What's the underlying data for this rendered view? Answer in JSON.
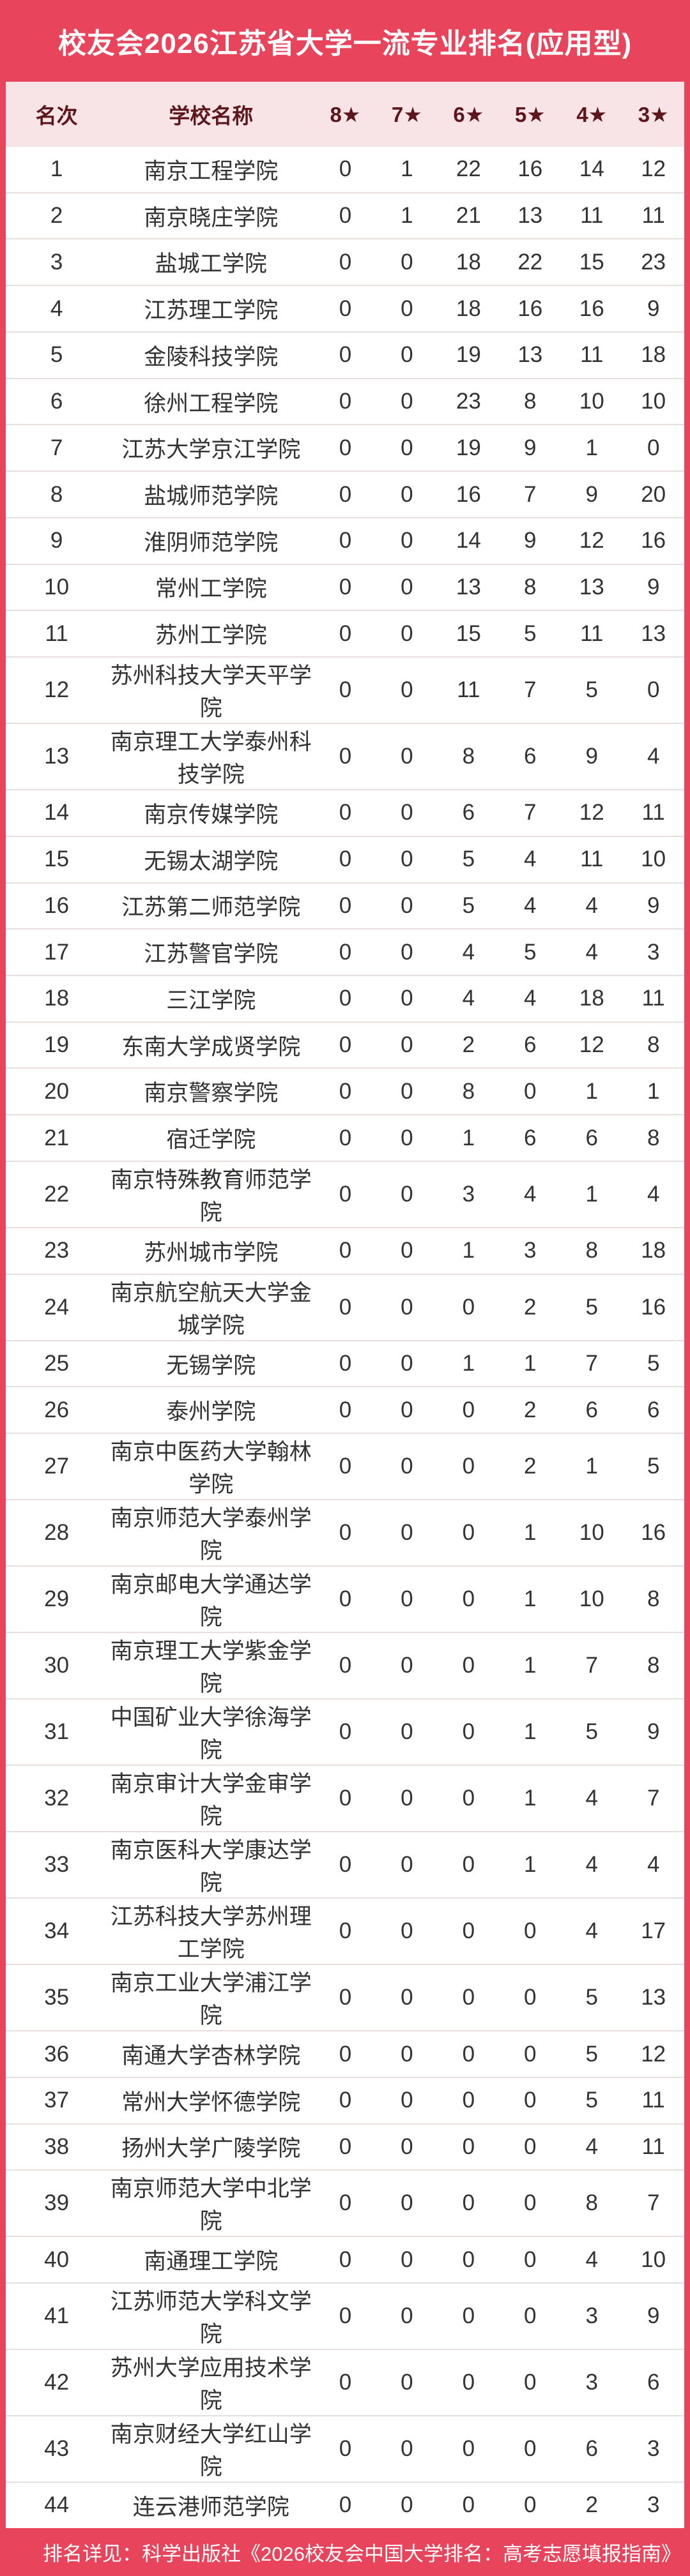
{
  "title": "校友会2026江苏省大学一流专业排名(应用型)",
  "footer_note": "排名详见：科学出版社《2026校友会中国大学排名：高考志愿填报指南》",
  "colors": {
    "accent_red": "#e8455c",
    "header_pink": "#f8e4e6",
    "header_text_maroon": "#5d171c",
    "row_text": "#333333",
    "row_divider": "#e8dede",
    "title_text": "#ffffff"
  },
  "table": {
    "columns": [
      "名次",
      "学校名称",
      "8★",
      "7★",
      "6★",
      "5★",
      "4★",
      "3★"
    ],
    "rows": [
      [
        1,
        "南京工程学院",
        0,
        1,
        22,
        16,
        14,
        12
      ],
      [
        2,
        "南京晓庄学院",
        0,
        1,
        21,
        13,
        11,
        11
      ],
      [
        3,
        "盐城工学院",
        0,
        0,
        18,
        22,
        15,
        23
      ],
      [
        4,
        "江苏理工学院",
        0,
        0,
        18,
        16,
        16,
        9
      ],
      [
        5,
        "金陵科技学院",
        0,
        0,
        19,
        13,
        11,
        18
      ],
      [
        6,
        "徐州工程学院",
        0,
        0,
        23,
        8,
        10,
        10
      ],
      [
        7,
        "江苏大学京江学院",
        0,
        0,
        19,
        9,
        1,
        0
      ],
      [
        8,
        "盐城师范学院",
        0,
        0,
        16,
        7,
        9,
        20
      ],
      [
        9,
        "淮阴师范学院",
        0,
        0,
        14,
        9,
        12,
        16
      ],
      [
        10,
        "常州工学院",
        0,
        0,
        13,
        8,
        13,
        9
      ],
      [
        11,
        "苏州工学院",
        0,
        0,
        15,
        5,
        11,
        13
      ],
      [
        12,
        "苏州科技大学天平学院",
        0,
        0,
        11,
        7,
        5,
        0
      ],
      [
        13,
        "南京理工大学泰州科技学院",
        0,
        0,
        8,
        6,
        9,
        4
      ],
      [
        14,
        "南京传媒学院",
        0,
        0,
        6,
        7,
        12,
        11
      ],
      [
        15,
        "无锡太湖学院",
        0,
        0,
        5,
        4,
        11,
        10
      ],
      [
        16,
        "江苏第二师范学院",
        0,
        0,
        5,
        4,
        4,
        9
      ],
      [
        17,
        "江苏警官学院",
        0,
        0,
        4,
        5,
        4,
        3
      ],
      [
        18,
        "三江学院",
        0,
        0,
        4,
        4,
        18,
        11
      ],
      [
        19,
        "东南大学成贤学院",
        0,
        0,
        2,
        6,
        12,
        8
      ],
      [
        20,
        "南京警察学院",
        0,
        0,
        8,
        0,
        1,
        1
      ],
      [
        21,
        "宿迁学院",
        0,
        0,
        1,
        6,
        6,
        8
      ],
      [
        22,
        "南京特殊教育师范学院",
        0,
        0,
        3,
        4,
        1,
        4
      ],
      [
        23,
        "苏州城市学院",
        0,
        0,
        1,
        3,
        8,
        18
      ],
      [
        24,
        "南京航空航天大学金城学院",
        0,
        0,
        0,
        2,
        5,
        16
      ],
      [
        25,
        "无锡学院",
        0,
        0,
        1,
        1,
        7,
        5
      ],
      [
        26,
        "泰州学院",
        0,
        0,
        0,
        2,
        6,
        6
      ],
      [
        27,
        "南京中医药大学翰林学院",
        0,
        0,
        0,
        2,
        1,
        5
      ],
      [
        28,
        "南京师范大学泰州学院",
        0,
        0,
        0,
        1,
        10,
        16
      ],
      [
        29,
        "南京邮电大学通达学院",
        0,
        0,
        0,
        1,
        10,
        8
      ],
      [
        30,
        "南京理工大学紫金学院",
        0,
        0,
        0,
        1,
        7,
        8
      ],
      [
        31,
        "中国矿业大学徐海学院",
        0,
        0,
        0,
        1,
        5,
        9
      ],
      [
        32,
        "南京审计大学金审学院",
        0,
        0,
        0,
        1,
        4,
        7
      ],
      [
        33,
        "南京医科大学康达学院",
        0,
        0,
        0,
        1,
        4,
        4
      ],
      [
        34,
        "江苏科技大学苏州理工学院",
        0,
        0,
        0,
        0,
        4,
        17
      ],
      [
        35,
        "南京工业大学浦江学院",
        0,
        0,
        0,
        0,
        5,
        13
      ],
      [
        36,
        "南通大学杏林学院",
        0,
        0,
        0,
        0,
        5,
        12
      ],
      [
        37,
        "常州大学怀德学院",
        0,
        0,
        0,
        0,
        5,
        11
      ],
      [
        38,
        "扬州大学广陵学院",
        0,
        0,
        0,
        0,
        4,
        11
      ],
      [
        39,
        "南京师范大学中北学院",
        0,
        0,
        0,
        0,
        8,
        7
      ],
      [
        40,
        "南通理工学院",
        0,
        0,
        0,
        0,
        4,
        10
      ],
      [
        41,
        "江苏师范大学科文学院",
        0,
        0,
        0,
        0,
        3,
        9
      ],
      [
        42,
        "苏州大学应用技术学院",
        0,
        0,
        0,
        0,
        3,
        6
      ],
      [
        43,
        "南京财经大学红山学院",
        0,
        0,
        0,
        0,
        6,
        3
      ],
      [
        44,
        "连云港师范学院",
        0,
        0,
        0,
        0,
        2,
        3
      ]
    ]
  }
}
